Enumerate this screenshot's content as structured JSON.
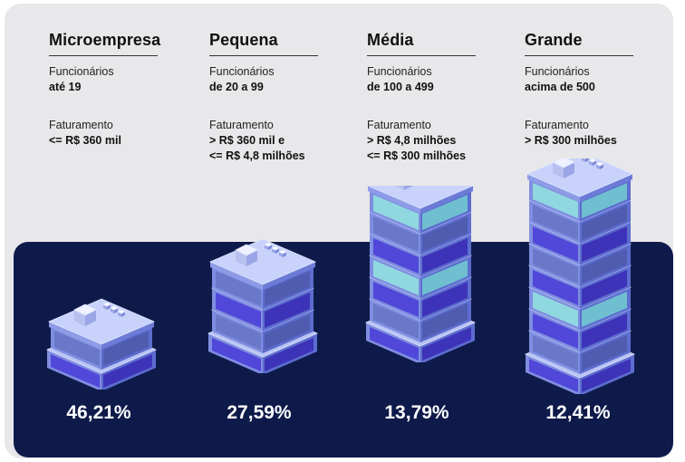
{
  "categories": [
    {
      "title": "Microempresa",
      "employees_label": "Funcionários",
      "employees_value": "até 19",
      "revenue_label": "Faturamento",
      "revenue_line1": "<= R$ 360 mil",
      "revenue_line2": "",
      "percentage": "46,21%",
      "floors": 1
    },
    {
      "title": "Pequena",
      "employees_label": "Funcionários",
      "employees_value": "de 20 a 99",
      "revenue_label": "Faturamento",
      "revenue_line1": "> R$ 360 mil e",
      "revenue_line2": "<= R$ 4,8 milhões",
      "percentage": "27,59%",
      "floors": 3
    },
    {
      "title": "Média",
      "employees_label": "Funcionários",
      "employees_value": "de 100 a 499",
      "revenue_label": "Faturamento",
      "revenue_line1": "> R$ 4,8 milhões",
      "revenue_line2": "<= R$ 300 milhões",
      "percentage": "13,79%",
      "floors": 6
    },
    {
      "title": "Grande",
      "employees_label": "Funcionários",
      "employees_value": "acima de 500",
      "revenue_label": "Faturamento",
      "revenue_line1": "> R$ 300 milhões",
      "revenue_line2": "",
      "percentage": "12,41%",
      "floors": 8
    }
  ],
  "colors": {
    "panel_light": "#e8e8ea",
    "panel_dark": "#0e1a4a",
    "building_top": "#b9c4f4",
    "building_left": "#7f8ee0",
    "building_right": "#5d6dcf",
    "glass_left": "#5147d9",
    "glass_right": "#3d33b8",
    "glass_alt": "#8fd8e0"
  }
}
